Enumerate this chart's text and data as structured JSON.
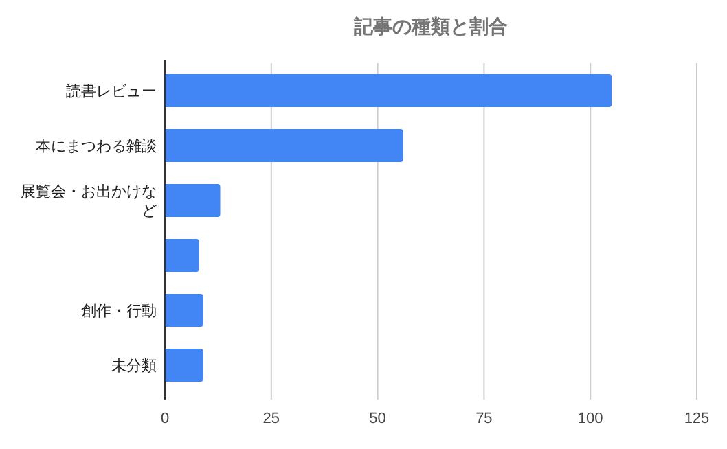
{
  "chart_data": {
    "type": "bar",
    "orientation": "horizontal",
    "title": "記事の種類と割合",
    "categories": [
      "読書レビュー",
      "本にまつわる雑談",
      "展覧会・お出かけなど",
      null,
      "創作・行動",
      "未分類"
    ],
    "values": [
      105,
      56,
      13,
      8,
      9,
      9
    ],
    "color": "#4285f4",
    "xlim": [
      0,
      125
    ],
    "xticks": [
      0,
      25,
      50,
      75,
      100,
      125
    ],
    "grid": "x"
  }
}
